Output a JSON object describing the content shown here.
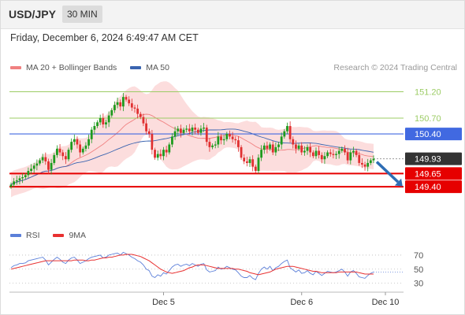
{
  "header": {
    "pair": "USD/JPY",
    "timeframe": "30 MIN"
  },
  "datetime": "Friday, December 6, 2024 6:49:47 AM CET",
  "legend": {
    "ma20_label": "MA 20 + Bollinger Bands",
    "ma50_label": "MA 50",
    "rsi_label": "RSI",
    "rsi_ma_label": "9MA"
  },
  "watermark": "Research © 2024 Trading Central",
  "colors": {
    "up": "#1e9b1e",
    "down": "#e03030",
    "bollinger_fill": "#fbd2d2",
    "ma20": "#f08080",
    "ma50": "#3a64b0",
    "resistance_green": "#9ccc65",
    "pivot_blue": "#4169e1",
    "support_red": "#e60000",
    "current_price": "#333333",
    "rsi": "#5b7fd9",
    "rsi_ma": "#e83030",
    "arrow": "#2e6db4"
  },
  "chart_data": [
    {
      "type": "candlestick",
      "title": "USD/JPY 30 MIN",
      "x_tick_labels": [
        "Dec 5",
        "Dec 6",
        "Dec 10"
      ],
      "ylim": [
        148.76,
        151.52
      ],
      "y_tick_labels": [
        "151.20",
        "150.70",
        "150.40",
        "149.93",
        "149.65",
        "149.40"
      ],
      "levels": [
        {
          "value": 151.2,
          "label": "151.20",
          "kind": "resistance"
        },
        {
          "value": 150.7,
          "label": "150.70",
          "kind": "resistance"
        },
        {
          "value": 150.4,
          "label": "150.40",
          "kind": "pivot"
        },
        {
          "value": 149.93,
          "label": "149.93",
          "kind": "current_price"
        },
        {
          "value": 149.65,
          "label": "149.65",
          "kind": "support"
        },
        {
          "value": 149.4,
          "label": "149.40",
          "kind": "support"
        }
      ],
      "close": [
        149.44,
        149.5,
        149.52,
        149.56,
        149.58,
        149.62,
        149.7,
        149.74,
        149.8,
        149.84,
        149.9,
        149.96,
        149.88,
        149.72,
        149.85,
        150.0,
        150.12,
        150.05,
        149.98,
        149.92,
        150.1,
        150.25,
        150.3,
        150.2,
        150.05,
        150.12,
        150.18,
        150.3,
        150.48,
        150.55,
        150.62,
        150.7,
        150.58,
        150.62,
        150.75,
        150.85,
        150.95,
        151.0,
        150.92,
        151.1,
        151.05,
        150.98,
        150.9,
        150.88,
        150.78,
        150.72,
        150.6,
        150.45,
        150.4,
        150.1,
        149.95,
        150.02,
        149.98,
        150.1,
        150.05,
        150.2,
        150.35,
        150.45,
        150.5,
        150.42,
        150.48,
        150.5,
        150.45,
        150.52,
        150.48,
        150.42,
        150.5,
        150.52,
        150.25,
        150.15,
        150.18,
        150.2,
        150.35,
        150.28,
        150.3,
        150.4,
        150.35,
        150.3,
        150.28,
        150.15,
        149.95,
        149.88,
        149.85,
        149.92,
        149.78,
        149.7,
        149.95,
        150.1,
        150.18,
        150.12,
        150.2,
        150.05,
        150.15,
        150.2,
        150.35,
        150.45,
        150.55,
        150.3,
        150.2,
        150.12,
        150.18,
        150.05,
        150.08,
        150.15,
        150.05,
        149.98,
        150.08,
        150.0,
        149.92,
        149.98,
        150.05,
        150.02,
        150.0,
        150.02,
        150.08,
        150.12,
        150.05,
        149.9,
        150.05,
        150.08,
        150.0,
        149.85,
        149.82,
        149.78,
        149.85,
        149.9,
        149.93
      ]
    },
    {
      "type": "line",
      "title": "RSI",
      "ylim": [
        24,
        80
      ],
      "y_tick_labels": [
        "70",
        "50",
        "30"
      ],
      "series": [
        {
          "name": "RSI",
          "values": [
            52,
            55,
            56,
            58,
            58,
            59,
            62,
            63,
            64,
            65,
            66,
            67,
            63,
            56,
            60,
            64,
            67,
            64,
            60,
            58,
            63,
            66,
            67,
            63,
            58,
            60,
            62,
            65,
            67,
            68,
            69,
            70,
            66,
            67,
            70,
            71,
            72,
            73,
            70,
            74,
            72,
            70,
            67,
            65,
            62,
            60,
            56,
            50,
            48,
            40,
            38,
            42,
            40,
            45,
            43,
            48,
            53,
            56,
            57,
            54,
            56,
            57,
            55,
            58,
            56,
            54,
            57,
            58,
            49,
            46,
            47,
            48,
            53,
            50,
            51,
            54,
            52,
            50,
            49,
            45,
            40,
            38,
            38,
            41,
            37,
            35,
            44,
            50,
            53,
            50,
            54,
            48,
            52,
            54,
            58,
            61,
            63,
            52,
            49,
            46,
            49,
            44,
            45,
            48,
            44,
            42,
            47,
            44,
            41,
            44,
            47,
            46,
            45,
            46,
            48,
            50,
            46,
            40,
            46,
            48,
            44,
            39,
            38,
            37,
            41,
            44,
            46
          ]
        },
        {
          "name": "9MA",
          "values": [
            50,
            51,
            52,
            53,
            54,
            55,
            56,
            57,
            58,
            59,
            60,
            61,
            62,
            62,
            62,
            62,
            62,
            62,
            62,
            62,
            62,
            62,
            63,
            63,
            63,
            63,
            62,
            62,
            63,
            63,
            64,
            65,
            66,
            66,
            67,
            67,
            68,
            69,
            70,
            70,
            71,
            71,
            71,
            70,
            69,
            68,
            66,
            64,
            62,
            59,
            56,
            53,
            50,
            48,
            46,
            45,
            44,
            45,
            46,
            47,
            48,
            50,
            52,
            53,
            55,
            56,
            56,
            56,
            55,
            54,
            53,
            52,
            51,
            51,
            51,
            51,
            51,
            51,
            50,
            50,
            49,
            48,
            47,
            45,
            44,
            43,
            42,
            43,
            44,
            45,
            46,
            48,
            50,
            51,
            52,
            53,
            54,
            54,
            54,
            53,
            52,
            51,
            50,
            49,
            48,
            47,
            47,
            46,
            45,
            45,
            45,
            45,
            45,
            45,
            46,
            46,
            46,
            46,
            46,
            46,
            46,
            45,
            44,
            43,
            43,
            43,
            43
          ]
        }
      ]
    }
  ]
}
